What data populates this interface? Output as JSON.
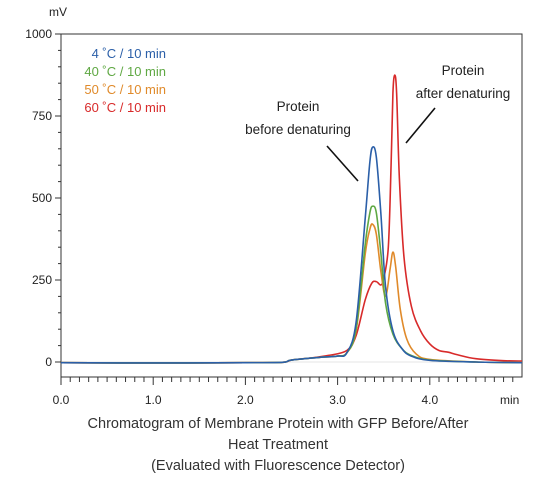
{
  "chart_data": {
    "type": "line",
    "xunit": "min",
    "yunit": "mV",
    "xlim": [
      0,
      5.0
    ],
    "ylim": [
      0,
      1000
    ],
    "xticks": [
      0,
      1.0,
      2.0,
      3.0,
      4.0
    ],
    "xtick_labels": [
      "0.0",
      "1.0",
      "2.0",
      "3.0",
      "4.0"
    ],
    "yticks": [
      0,
      250,
      500,
      750,
      1000
    ],
    "ytick_labels": [
      "0",
      "250",
      "500",
      "750",
      "1000"
    ],
    "grid": false,
    "legend_position": "top-left",
    "series": [
      {
        "name": "4 ˚C / 10 min",
        "color": "#2b5fa8",
        "points": [
          [
            0,
            -2
          ],
          [
            1.0,
            -3
          ],
          [
            2.0,
            -2
          ],
          [
            2.4,
            -1
          ],
          [
            2.5,
            6
          ],
          [
            2.8,
            14
          ],
          [
            3.0,
            18
          ],
          [
            3.1,
            28
          ],
          [
            3.2,
            120
          ],
          [
            3.3,
            440
          ],
          [
            3.35,
            610
          ],
          [
            3.38,
            655
          ],
          [
            3.42,
            625
          ],
          [
            3.47,
            450
          ],
          [
            3.52,
            230
          ],
          [
            3.6,
            95
          ],
          [
            3.7,
            40
          ],
          [
            3.8,
            18
          ],
          [
            4.0,
            5
          ],
          [
            4.5,
            0
          ],
          [
            5.0,
            -2
          ]
        ]
      },
      {
        "name": "40 ˚C / 10 min",
        "color": "#5fa843",
        "points": [
          [
            0,
            -2
          ],
          [
            1.0,
            -3
          ],
          [
            2.0,
            -2
          ],
          [
            2.4,
            -1
          ],
          [
            2.5,
            6
          ],
          [
            2.8,
            14
          ],
          [
            3.0,
            18
          ],
          [
            3.1,
            28
          ],
          [
            3.2,
            100
          ],
          [
            3.3,
            360
          ],
          [
            3.35,
            455
          ],
          [
            3.38,
            475
          ],
          [
            3.42,
            455
          ],
          [
            3.47,
            330
          ],
          [
            3.52,
            180
          ],
          [
            3.6,
            85
          ],
          [
            3.7,
            40
          ],
          [
            3.8,
            20
          ],
          [
            4.0,
            6
          ],
          [
            4.5,
            0
          ],
          [
            5.0,
            -2
          ]
        ]
      },
      {
        "name": "50 ˚C / 10 min",
        "color": "#e08a2a",
        "points": [
          [
            0,
            -2
          ],
          [
            1.0,
            -3
          ],
          [
            2.0,
            -2
          ],
          [
            2.4,
            -1
          ],
          [
            2.5,
            6
          ],
          [
            2.8,
            14
          ],
          [
            3.0,
            18
          ],
          [
            3.1,
            28
          ],
          [
            3.2,
            95
          ],
          [
            3.3,
            330
          ],
          [
            3.35,
            405
          ],
          [
            3.38,
            420
          ],
          [
            3.42,
            390
          ],
          [
            3.47,
            275
          ],
          [
            3.52,
            200
          ],
          [
            3.57,
            285
          ],
          [
            3.6,
            335
          ],
          [
            3.63,
            290
          ],
          [
            3.68,
            160
          ],
          [
            3.75,
            70
          ],
          [
            3.85,
            25
          ],
          [
            4.0,
            8
          ],
          [
            4.5,
            0
          ],
          [
            5.0,
            -2
          ]
        ]
      },
      {
        "name": "60 ˚C / 10 min",
        "color": "#d82a2a",
        "points": [
          [
            0,
            -2
          ],
          [
            1.0,
            -3
          ],
          [
            2.0,
            -2
          ],
          [
            2.4,
            -1
          ],
          [
            2.5,
            6
          ],
          [
            2.7,
            12
          ],
          [
            2.9,
            20
          ],
          [
            3.1,
            35
          ],
          [
            3.2,
            80
          ],
          [
            3.3,
            190
          ],
          [
            3.37,
            240
          ],
          [
            3.42,
            245
          ],
          [
            3.47,
            235
          ],
          [
            3.5,
            255
          ],
          [
            3.55,
            350
          ],
          [
            3.58,
            600
          ],
          [
            3.6,
            820
          ],
          [
            3.62,
            875
          ],
          [
            3.64,
            820
          ],
          [
            3.67,
            560
          ],
          [
            3.72,
            320
          ],
          [
            3.8,
            170
          ],
          [
            3.9,
            95
          ],
          [
            4.0,
            55
          ],
          [
            4.1,
            35
          ],
          [
            4.2,
            30
          ],
          [
            4.3,
            22
          ],
          [
            4.5,
            10
          ],
          [
            4.8,
            4
          ],
          [
            5.0,
            3
          ]
        ]
      }
    ],
    "annotations": [
      {
        "lines": [
          "Protein",
          "before denaturing"
        ]
      },
      {
        "lines": [
          "Protein",
          "after denaturing"
        ]
      }
    ],
    "caption": [
      "Chromatogram of Membrane Protein with GFP Before/After",
      "Heat Treatment",
      "(Evaluated with Fluorescence Detector)"
    ]
  }
}
